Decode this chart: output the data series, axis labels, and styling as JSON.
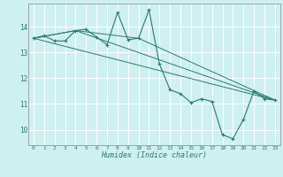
{
  "title": "",
  "xlabel": "Humidex (Indice chaleur)",
  "bg_color": "#cff0f0",
  "grid_color": "#ffffff",
  "line_color": "#2a7a6a",
  "xlim": [
    -0.5,
    23.5
  ],
  "ylim": [
    9.4,
    14.9
  ],
  "yticks": [
    10,
    11,
    12,
    13,
    14
  ],
  "xticks": [
    0,
    1,
    2,
    3,
    4,
    5,
    6,
    7,
    8,
    9,
    10,
    11,
    12,
    13,
    14,
    15,
    16,
    17,
    18,
    19,
    20,
    21,
    22,
    23
  ],
  "main_x": [
    0,
    1,
    2,
    3,
    4,
    5,
    6,
    7,
    8,
    9,
    10,
    11,
    12,
    13,
    14,
    15,
    16,
    17,
    18,
    19,
    20,
    21,
    22,
    23
  ],
  "main_y": [
    13.55,
    13.65,
    13.45,
    13.45,
    13.85,
    13.9,
    13.6,
    13.3,
    14.55,
    13.5,
    13.55,
    14.65,
    12.55,
    11.55,
    11.4,
    11.05,
    11.2,
    11.1,
    9.8,
    9.65,
    10.4,
    11.5,
    11.2,
    11.15
  ],
  "lines": [
    {
      "x": [
        0,
        23
      ],
      "y": [
        13.55,
        11.15
      ]
    },
    {
      "x": [
        0,
        4,
        23
      ],
      "y": [
        13.55,
        13.85,
        11.15
      ]
    },
    {
      "x": [
        0,
        4,
        10,
        23
      ],
      "y": [
        13.55,
        13.85,
        13.55,
        11.15
      ]
    }
  ]
}
